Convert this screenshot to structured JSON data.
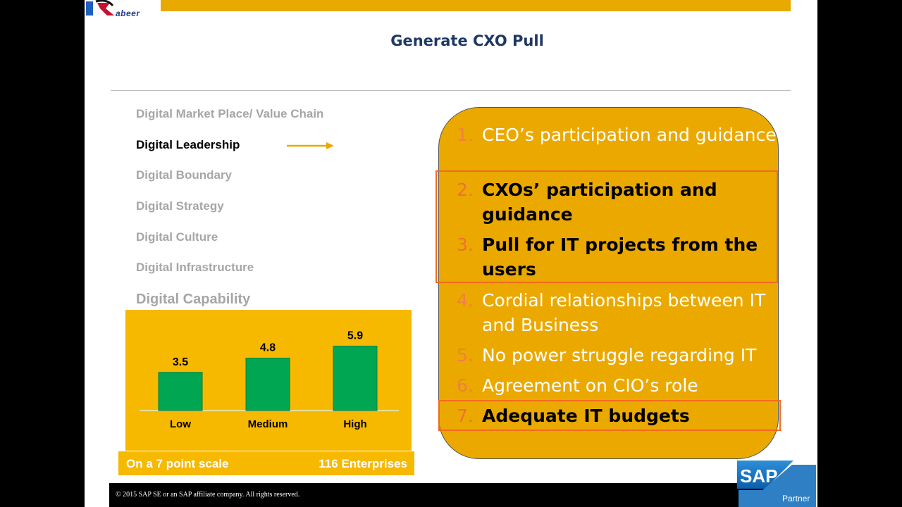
{
  "logo": {
    "text": "abeer"
  },
  "title": "Generate CXO Pull",
  "menu": {
    "items": [
      "Digital Market Place/ Value Chain",
      "Digital Leadership",
      "Digital Boundary",
      "Digital Strategy",
      "Digital Culture",
      "Digital Infrastructure",
      "Digital Capability"
    ],
    "active_index": 1
  },
  "chart_data": {
    "type": "bar",
    "categories": [
      "Low",
      "Medium",
      "High"
    ],
    "values": [
      3.5,
      4.8,
      5.9
    ],
    "data_labels": [
      "3.5",
      "4.8",
      "5.9"
    ],
    "title": "",
    "xlabel": "",
    "ylabel": "",
    "ylim": [
      0,
      7
    ],
    "grid": false,
    "colors": {
      "bar": "#00a651",
      "bar_border": "#00803c",
      "background": "#f6b900",
      "baseline": "#e9e9c9"
    }
  },
  "chart_footer": {
    "left": "On a 7 point scale",
    "right": "116 Enterprises"
  },
  "list": {
    "items": [
      {
        "num": "1.",
        "text": "CEO’s participation and guidance",
        "highlight": false
      },
      {
        "num": "2.",
        "text": "CXOs’ participation and guidance",
        "highlight": true
      },
      {
        "num": "3.",
        "text": "Pull for IT projects from the users",
        "highlight": true
      },
      {
        "num": "4.",
        "text": "Cordial relationships between IT and Business",
        "highlight": false
      },
      {
        "num": "5.",
        "text": "No power struggle regarding IT",
        "highlight": false
      },
      {
        "num": "6.",
        "text": "Agreement on CIO’s role",
        "highlight": false
      },
      {
        "num": "7.",
        "text": "Adequate IT budgets",
        "highlight": true
      }
    ]
  },
  "copyright": "© 2015 SAP SE or an SAP affiliate company. All rights reserved.",
  "sap_logo": {
    "brand": "SAP",
    "tag": "Partner"
  },
  "colors": {
    "accent": "#e8a900",
    "title": "#1f3864",
    "highlight_border": "#f26b1d"
  }
}
